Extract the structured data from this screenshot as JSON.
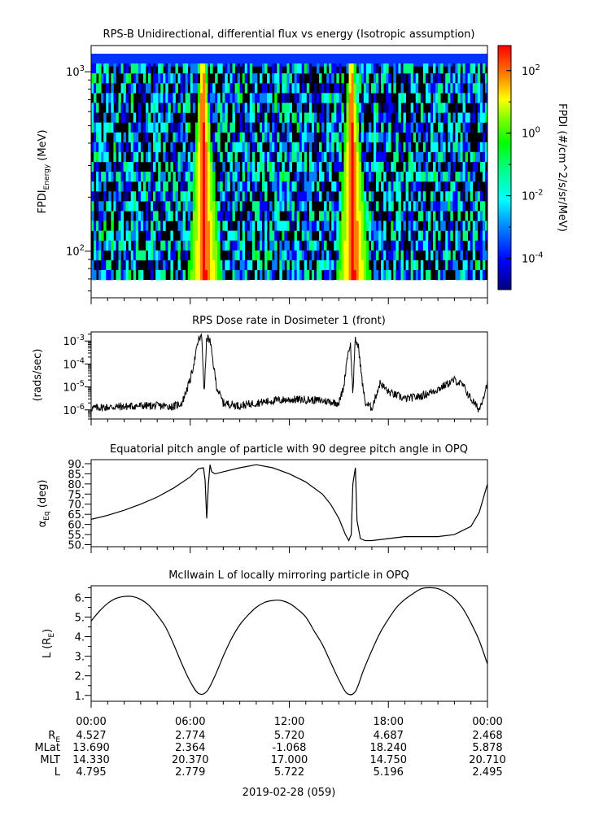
{
  "chart_data": [
    {
      "type": "heatmap",
      "title": "RPS-B  Unidirectional, differential flux vs energy (Isotropic assumption)",
      "ylabel_main": "FPDI",
      "ylabel_sub": "Energy",
      "ylabel_unit": " (MeV)",
      "yscale": "log",
      "ylim": [
        55,
        1400
      ],
      "ytick_labels": [
        {
          "base": "10",
          "exp": "2",
          "value": 100
        },
        {
          "base": "10",
          "exp": "3",
          "value": 1000
        }
      ],
      "colorbar": {
        "label": "FPDI (#/cm^2/s/sr/MeV)",
        "range": [
          -5,
          2.8
        ],
        "ticks": [
          {
            "base": "10",
            "exp": "2",
            "value": 2
          },
          {
            "base": "10",
            "exp": "0",
            "value": 0
          },
          {
            "base": "10",
            "exp": "-2",
            "value": -2
          },
          {
            "base": "10",
            "exp": "-4",
            "value": -4
          }
        ],
        "colors": [
          "#00007f",
          "#0000ff",
          "#007fff",
          "#00ffff",
          "#00ff7f",
          "#00ff00",
          "#7fff00",
          "#ffff00",
          "#ff7f00",
          "#ff0000"
        ]
      },
      "bright_bands": [
        {
          "center_hour": 6.9,
          "peak_log_flux": 2.3
        },
        {
          "center_hour": 15.9,
          "peak_log_flux": 2.3
        }
      ]
    },
    {
      "type": "line",
      "title": "RPS  Dose rate in Dosimeter 1 (front)",
      "ylabel": "(rads/sec)",
      "yscale": "log",
      "ylim": [
        4e-07,
        0.0025
      ],
      "ytick_labels": [
        {
          "base": "10",
          "exp": "-3",
          "value": 0.001
        },
        {
          "base": "10",
          "exp": "-4",
          "value": 0.0001
        },
        {
          "base": "10",
          "exp": "-5",
          "value": 1e-05
        },
        {
          "base": "10",
          "exp": "-6",
          "value": 1e-06
        }
      ],
      "x_hours": [
        0,
        1,
        2,
        3,
        4,
        5,
        5.5,
        6,
        6.3,
        6.5,
        6.7,
        6.85,
        7.0,
        7.2,
        7.4,
        7.6,
        8.0,
        9,
        10,
        11,
        12,
        13,
        14,
        15,
        15.3,
        15.5,
        15.7,
        15.85,
        16.0,
        16.2,
        16.4,
        16.6,
        17.0,
        17.5,
        18,
        19,
        20,
        21,
        22,
        22.5,
        23,
        23.5,
        24
      ],
      "values": [
        1.2e-06,
        1.3e-06,
        1.4e-06,
        1.5e-06,
        1.5e-06,
        1.4e-06,
        2e-06,
        2e-05,
        0.0002,
        0.0012,
        0.0015,
        5e-06,
        0.0015,
        0.001,
        0.0001,
        1e-05,
        2e-06,
        1.5e-06,
        2e-06,
        2.5e-06,
        2.8e-06,
        2.8e-06,
        2.5e-06,
        2e-06,
        1e-05,
        0.0002,
        0.0008,
        5e-06,
        0.0012,
        0.0005,
        2e-05,
        2e-06,
        1.2e-06,
        1.5e-05,
        6e-06,
        3e-06,
        4e-06,
        8e-06,
        2e-05,
        1.2e-05,
        3e-06,
        1e-06,
        1.5e-05
      ]
    },
    {
      "type": "line",
      "title": "Equatorial pitch angle of particle with 90 degree pitch angle in OPQ",
      "ylabel_main": "α",
      "ylabel_sub": "Eq",
      "ylabel_unit": " (deg)",
      "ylim": [
        49,
        92
      ],
      "yticks": [
        90,
        85,
        80,
        75,
        70,
        65,
        60,
        55,
        50
      ],
      "ytick_labels": [
        "90.",
        "85.",
        "80.",
        "75.",
        "70.",
        "65.",
        "60.",
        "55.",
        "50."
      ],
      "x_hours": [
        0,
        1,
        2,
        3,
        4,
        5,
        6,
        6.5,
        6.8,
        6.9,
        7.0,
        7.1,
        7.2,
        7.3,
        7.5,
        8,
        9,
        10,
        11,
        12,
        13,
        14,
        14.5,
        15,
        15.4,
        15.6,
        15.75,
        15.85,
        16.0,
        16.1,
        16.3,
        16.6,
        17,
        18,
        19,
        20,
        21,
        22,
        23,
        23.5,
        24
      ],
      "values": [
        62.5,
        64.5,
        67,
        70,
        73.5,
        78,
        83.5,
        87.5,
        88,
        82,
        63,
        80,
        89.5,
        86,
        85,
        86,
        88,
        89.5,
        88,
        85,
        81,
        75,
        70,
        63,
        55,
        52,
        55,
        80,
        88,
        62,
        53,
        52,
        52,
        53,
        54,
        54,
        54,
        55,
        59,
        66,
        80
      ]
    },
    {
      "type": "line",
      "title": "McIlwain L of locally mirroring particle in OPQ",
      "ylabel_main": "L (R",
      "ylabel_sub": "E",
      "ylabel_unit": ")",
      "ylim": [
        0.7,
        6.6
      ],
      "yticks": [
        1,
        2,
        3,
        4,
        5,
        6
      ],
      "ytick_labels": [
        "1.",
        "2.",
        "3.",
        "4.",
        "5.",
        "6."
      ],
      "x_hours": [
        0,
        0.5,
        1,
        1.5,
        2,
        2.5,
        3,
        3.5,
        4,
        4.5,
        5,
        5.5,
        6,
        6.5,
        7,
        7.5,
        8,
        8.5,
        9,
        9.5,
        10,
        10.5,
        11,
        11.5,
        12,
        12.5,
        13,
        13.5,
        14,
        14.5,
        15,
        15.5,
        16,
        16.5,
        17,
        17.5,
        18,
        18.5,
        19,
        19.5,
        20,
        20.5,
        21,
        21.5,
        22,
        22.5,
        23,
        23.5,
        24
      ],
      "values": [
        4.8,
        5.3,
        5.7,
        5.95,
        6.05,
        6.05,
        5.9,
        5.6,
        5.1,
        4.5,
        3.6,
        2.6,
        1.7,
        1.1,
        1.2,
        2.0,
        3.0,
        3.9,
        4.6,
        5.1,
        5.5,
        5.75,
        5.85,
        5.85,
        5.7,
        5.4,
        5.0,
        4.3,
        3.6,
        2.7,
        1.8,
        1.1,
        1.2,
        2.3,
        3.3,
        4.2,
        4.9,
        5.5,
        5.9,
        6.2,
        6.45,
        6.5,
        6.45,
        6.25,
        5.95,
        5.45,
        4.7,
        3.8,
        2.6
      ]
    }
  ],
  "x_axis": {
    "ticks_hours": [
      0,
      6,
      12,
      18,
      24
    ],
    "tick_labels": [
      "00:00",
      "06:00",
      "12:00",
      "18:00",
      "00:00"
    ],
    "date_label": "2019-02-28 (059)"
  },
  "ephemeris": {
    "rows": [
      {
        "name_main": "R",
        "name_sub": "E",
        "values": [
          "4.527",
          "2.774",
          "5.720",
          "4.687",
          "2.468"
        ]
      },
      {
        "name_main": "MLat",
        "name_sub": "",
        "values": [
          "13.690",
          "2.364",
          "-1.068",
          "18.240",
          "5.878"
        ]
      },
      {
        "name_main": "MLT",
        "name_sub": "",
        "values": [
          "14.330",
          "20.370",
          "17.000",
          "14.750",
          "20.710"
        ]
      },
      {
        "name_main": "L",
        "name_sub": "",
        "values": [
          "4.795",
          "2.779",
          "5.722",
          "5.196",
          "2.495"
        ]
      }
    ]
  }
}
